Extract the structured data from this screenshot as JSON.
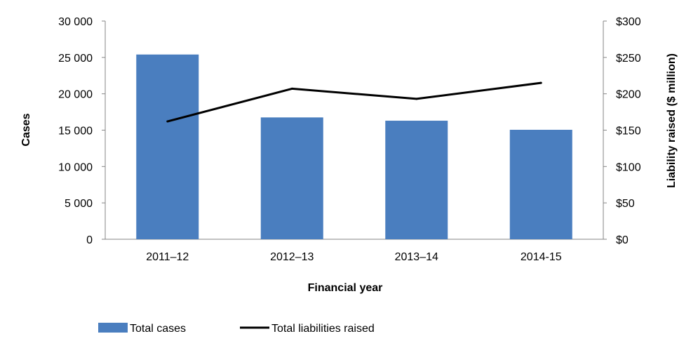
{
  "chart_data": {
    "type": "bar",
    "categories": [
      "2011–12",
      "2012–13",
      "2013–14",
      "2014-15"
    ],
    "series": [
      {
        "name": "Total cases",
        "type": "bar",
        "axis": "left",
        "color": "#4a7ebf",
        "values": [
          25400,
          16750,
          16300,
          15050
        ]
      },
      {
        "name": "Total liabilities raised",
        "type": "line",
        "axis": "right",
        "color": "#000000",
        "values": [
          162,
          207,
          193,
          215
        ]
      }
    ],
    "xlabel": "Financial year",
    "ylabel": "Cases",
    "y2label": "Liability raised ($ million)",
    "ylim": [
      0,
      30000
    ],
    "y2lim": [
      0,
      300
    ],
    "yticks": [
      "0",
      "5 000",
      "10 000",
      "15 000",
      "20 000",
      "25 000",
      "30 000"
    ],
    "y2ticks": [
      "$0",
      "$50",
      "$100",
      "$150",
      "$200",
      "$250",
      "$300"
    ],
    "grid": false,
    "legend_position": "bottom"
  }
}
